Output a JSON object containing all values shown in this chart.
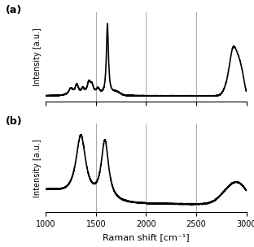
{
  "xmin": 1000,
  "xmax": 3000,
  "xticks": [
    1000,
    1500,
    2000,
    2500,
    3000
  ],
  "xlabel": "Raman shift [cm⁻¹]",
  "ylabel": "Intensity [a.u.]",
  "title_a": "(a)",
  "title_b": "(b)",
  "grid_color": "#aaaaaa",
  "line_color": "#000000",
  "line_width": 1.2,
  "background_color": "#ffffff"
}
